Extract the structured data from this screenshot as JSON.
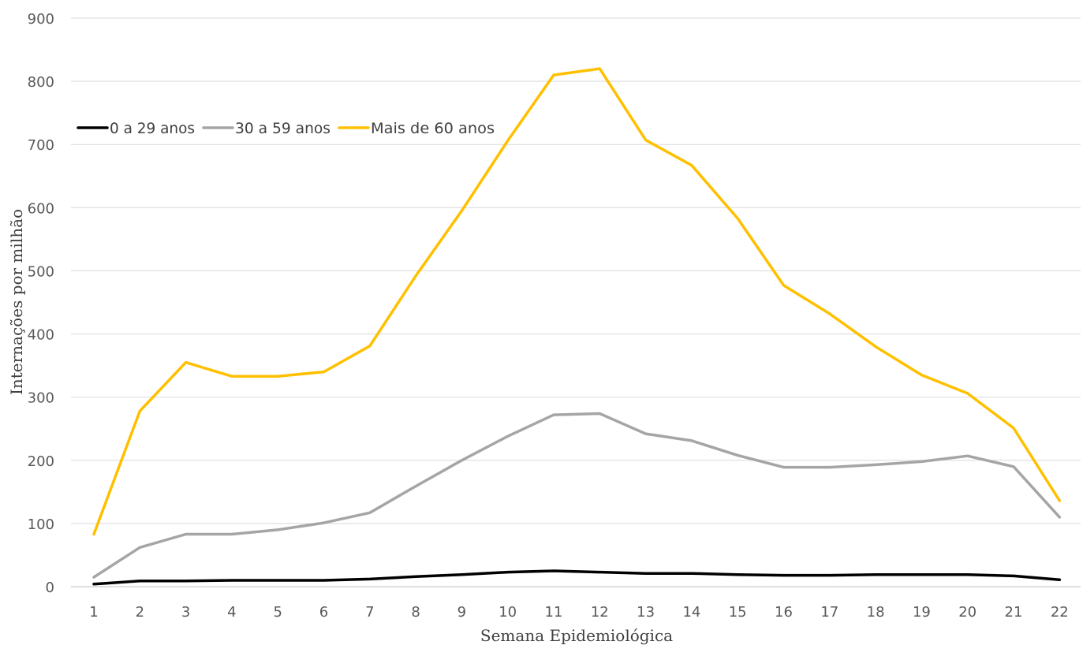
{
  "chart_data": {
    "type": "line",
    "title": "",
    "xlabel": "Semana Epidemiológica",
    "ylabel": "Internações por milhão",
    "x": [
      "1",
      "2",
      "3",
      "4",
      "5",
      "6",
      "7",
      "8",
      "9",
      "10",
      "11",
      "12",
      "13",
      "14",
      "15",
      "16",
      "17",
      "18",
      "19",
      "20",
      "21",
      "22"
    ],
    "ylim": [
      0,
      900
    ],
    "y_ticks": [
      "0",
      "100",
      "200",
      "300",
      "400",
      "500",
      "600",
      "700",
      "800",
      "900"
    ],
    "grid": true,
    "legend_position": "top-left",
    "series": [
      {
        "name": "0 a 29 anos",
        "color": "#000000",
        "values": [
          4,
          9,
          9,
          10,
          10,
          10,
          12,
          16,
          19,
          23,
          25,
          23,
          21,
          21,
          19,
          18,
          18,
          19,
          19,
          19,
          17,
          11
        ]
      },
      {
        "name": "30 a 59 anos",
        "color": "#a5a5a5",
        "values": [
          15,
          62,
          83,
          83,
          90,
          101,
          117,
          159,
          200,
          238,
          272,
          274,
          242,
          231,
          208,
          189,
          189,
          193,
          198,
          207,
          190,
          110
        ]
      },
      {
        "name": "Mais de 60 anos",
        "color": "#ffc000",
        "values": [
          83,
          278,
          355,
          333,
          333,
          340,
          381,
          492,
          595,
          706,
          810,
          820,
          707,
          667,
          583,
          477,
          432,
          380,
          335,
          306,
          251,
          136
        ]
      }
    ]
  }
}
